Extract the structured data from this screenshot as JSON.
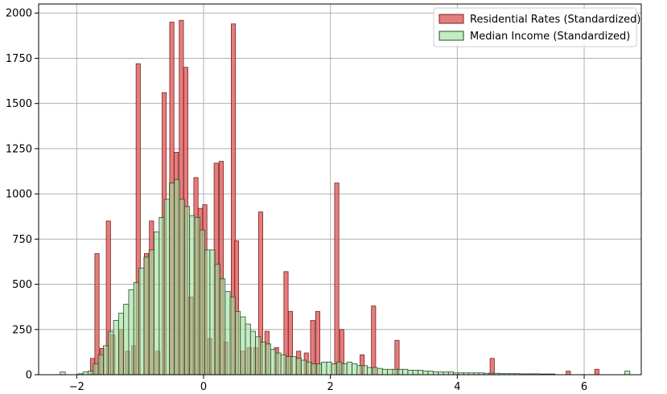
{
  "chart_data": {
    "type": "bar",
    "x_ticks": [
      -2,
      0,
      2,
      4,
      6
    ],
    "y_ticks": [
      0,
      250,
      500,
      750,
      1000,
      1250,
      1500,
      1750,
      2000
    ],
    "xlim": [
      -2.6,
      6.9
    ],
    "ylim": [
      0,
      2050
    ],
    "grid": true,
    "legend_position": "top-right",
    "series": [
      {
        "name": "Residential Rates (Standardized)",
        "color": "#e06666",
        "bin_width": 0.067,
        "bins": [
          [
            -1.75,
            90
          ],
          [
            -1.68,
            670
          ],
          [
            -1.6,
            145
          ],
          [
            -1.5,
            850
          ],
          [
            -1.43,
            220
          ],
          [
            -1.3,
            250
          ],
          [
            -1.2,
            130
          ],
          [
            -1.1,
            160
          ],
          [
            -1.03,
            1720
          ],
          [
            -0.9,
            670
          ],
          [
            -0.82,
            850
          ],
          [
            -0.72,
            130
          ],
          [
            -0.62,
            1560
          ],
          [
            -0.5,
            1950
          ],
          [
            -0.43,
            1230
          ],
          [
            -0.35,
            1960
          ],
          [
            -0.28,
            1700
          ],
          [
            -0.2,
            430
          ],
          [
            -0.12,
            1090
          ],
          [
            -0.05,
            920
          ],
          [
            0.02,
            940
          ],
          [
            0.1,
            200
          ],
          [
            0.2,
            1170
          ],
          [
            0.28,
            1180
          ],
          [
            0.35,
            180
          ],
          [
            0.47,
            1940
          ],
          [
            0.52,
            740
          ],
          [
            0.62,
            130
          ],
          [
            0.72,
            150
          ],
          [
            0.82,
            150
          ],
          [
            0.9,
            900
          ],
          [
            1.0,
            240
          ],
          [
            1.15,
            150
          ],
          [
            1.3,
            570
          ],
          [
            1.37,
            350
          ],
          [
            1.5,
            130
          ],
          [
            1.62,
            120
          ],
          [
            1.72,
            300
          ],
          [
            1.8,
            350
          ],
          [
            2.1,
            1060
          ],
          [
            2.18,
            250
          ],
          [
            2.5,
            110
          ],
          [
            2.68,
            380
          ],
          [
            3.05,
            190
          ],
          [
            4.55,
            90
          ],
          [
            5.75,
            20
          ],
          [
            6.2,
            30
          ]
        ]
      },
      {
        "name": "Median Income (Standardized)",
        "color": "#b9efb9",
        "bin_width": 0.08,
        "bins": [
          [
            -2.22,
            15
          ],
          [
            -1.94,
            5
          ],
          [
            -1.86,
            15
          ],
          [
            -1.78,
            20
          ],
          [
            -1.7,
            60
          ],
          [
            -1.62,
            110
          ],
          [
            -1.54,
            160
          ],
          [
            -1.46,
            240
          ],
          [
            -1.38,
            300
          ],
          [
            -1.3,
            340
          ],
          [
            -1.22,
            390
          ],
          [
            -1.14,
            470
          ],
          [
            -1.06,
            510
          ],
          [
            -0.98,
            590
          ],
          [
            -0.9,
            650
          ],
          [
            -0.82,
            690
          ],
          [
            -0.74,
            790
          ],
          [
            -0.66,
            870
          ],
          [
            -0.58,
            970
          ],
          [
            -0.5,
            1060
          ],
          [
            -0.42,
            1080
          ],
          [
            -0.34,
            970
          ],
          [
            -0.26,
            930
          ],
          [
            -0.18,
            880
          ],
          [
            -0.1,
            870
          ],
          [
            -0.02,
            800
          ],
          [
            0.06,
            690
          ],
          [
            0.14,
            690
          ],
          [
            0.22,
            610
          ],
          [
            0.3,
            530
          ],
          [
            0.38,
            460
          ],
          [
            0.46,
            430
          ],
          [
            0.54,
            350
          ],
          [
            0.62,
            320
          ],
          [
            0.7,
            280
          ],
          [
            0.78,
            240
          ],
          [
            0.86,
            210
          ],
          [
            0.94,
            180
          ],
          [
            1.02,
            170
          ],
          [
            1.1,
            140
          ],
          [
            1.18,
            120
          ],
          [
            1.26,
            110
          ],
          [
            1.34,
            100
          ],
          [
            1.42,
            100
          ],
          [
            1.5,
            90
          ],
          [
            1.58,
            80
          ],
          [
            1.66,
            70
          ],
          [
            1.74,
            60
          ],
          [
            1.82,
            60
          ],
          [
            1.9,
            70
          ],
          [
            1.98,
            70
          ],
          [
            2.06,
            60
          ],
          [
            2.14,
            70
          ],
          [
            2.22,
            60
          ],
          [
            2.3,
            70
          ],
          [
            2.38,
            60
          ],
          [
            2.46,
            50
          ],
          [
            2.54,
            50
          ],
          [
            2.62,
            40
          ],
          [
            2.7,
            40
          ],
          [
            2.78,
            35
          ],
          [
            2.86,
            30
          ],
          [
            2.94,
            30
          ],
          [
            3.02,
            30
          ],
          [
            3.1,
            30
          ],
          [
            3.18,
            30
          ],
          [
            3.26,
            25
          ],
          [
            3.34,
            25
          ],
          [
            3.42,
            25
          ],
          [
            3.5,
            20
          ],
          [
            3.58,
            20
          ],
          [
            3.66,
            15
          ],
          [
            3.74,
            15
          ],
          [
            3.82,
            15
          ],
          [
            3.9,
            15
          ],
          [
            3.98,
            10
          ],
          [
            4.06,
            10
          ],
          [
            4.14,
            10
          ],
          [
            4.22,
            10
          ],
          [
            4.3,
            10
          ],
          [
            4.38,
            10
          ],
          [
            4.46,
            8
          ],
          [
            4.54,
            8
          ],
          [
            4.62,
            8
          ],
          [
            4.7,
            6
          ],
          [
            4.78,
            6
          ],
          [
            4.86,
            6
          ],
          [
            4.94,
            6
          ],
          [
            5.02,
            5
          ],
          [
            5.1,
            5
          ],
          [
            5.18,
            5
          ],
          [
            5.26,
            5
          ],
          [
            5.34,
            4
          ],
          [
            5.42,
            4
          ],
          [
            5.5,
            4
          ],
          [
            6.68,
            20
          ]
        ]
      }
    ]
  }
}
